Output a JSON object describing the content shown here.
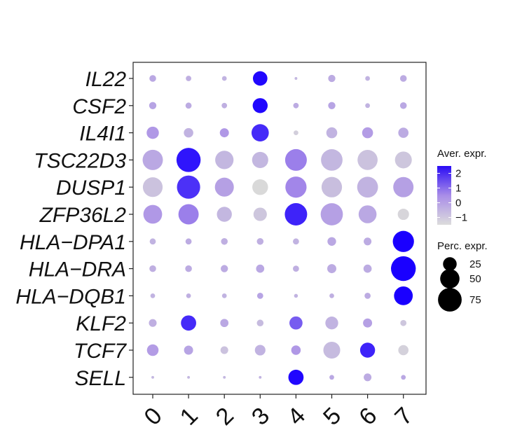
{
  "chart_data": {
    "type": "dotplot",
    "title": "",
    "xlabel": "",
    "ylabel": "",
    "clusters": [
      "0",
      "1",
      "2",
      "3",
      "4",
      "5",
      "6",
      "7"
    ],
    "genes": [
      "IL22",
      "CSF2",
      "IL4I1",
      "TSC22D3",
      "DUSP1",
      "ZFP36L2",
      "HLA−DPA1",
      "HLA−DRA",
      "HLA−DQB1",
      "KLF2",
      "TCF7",
      "SELL"
    ],
    "expr": [
      [
        -0.2,
        -0.4,
        -0.5,
        2.4,
        -0.6,
        -0.3,
        -0.5,
        -0.3
      ],
      [
        -0.1,
        -0.3,
        -0.4,
        2.4,
        -0.3,
        -0.1,
        -0.5,
        -0.2
      ],
      [
        0.2,
        -0.5,
        0.2,
        1.9,
        -1.2,
        -0.5,
        0.1,
        -0.3
      ],
      [
        -0.2,
        2.2,
        -0.6,
        -0.6,
        0.7,
        -0.6,
        -0.9,
        -1.0
      ],
      [
        -0.9,
        1.8,
        0.0,
        -1.5,
        0.6,
        -0.8,
        -0.5,
        0.0
      ],
      [
        0.2,
        0.7,
        -0.6,
        -1.0,
        2.0,
        0.0,
        -0.2,
        -1.4
      ],
      [
        -0.5,
        -0.3,
        -0.4,
        -0.4,
        -0.5,
        -0.2,
        -0.3,
        3.0
      ],
      [
        -0.4,
        -0.3,
        -0.3,
        -0.2,
        -0.4,
        -0.3,
        -0.3,
        3.0
      ],
      [
        -0.5,
        -0.4,
        -0.5,
        -0.1,
        -0.5,
        -0.4,
        -0.3,
        3.0
      ],
      [
        -0.4,
        1.9,
        -0.2,
        -0.7,
        1.2,
        -0.5,
        0.0,
        -1.0
      ],
      [
        0.1,
        -0.1,
        -0.9,
        -0.5,
        0.2,
        -0.7,
        2.0,
        -1.3
      ],
      [
        -0.6,
        -0.6,
        -0.6,
        -0.5,
        2.4,
        -0.2,
        -0.3,
        -0.2
      ]
    ],
    "pct": [
      [
        6,
        4,
        3,
        28,
        1,
        7,
        3,
        6
      ],
      [
        7,
        5,
        4,
        30,
        4,
        7,
        3,
        6
      ],
      [
        20,
        12,
        11,
        40,
        3,
        16,
        16,
        14
      ],
      [
        55,
        78,
        45,
        35,
        63,
        62,
        54,
        38
      ],
      [
        52,
        72,
        48,
        33,
        60,
        56,
        58,
        55
      ],
      [
        47,
        55,
        30,
        24,
        67,
        66,
        43,
        17
      ],
      [
        5,
        5,
        6,
        6,
        5,
        10,
        8,
        60
      ],
      [
        6,
        6,
        7,
        9,
        5,
        11,
        9,
        82
      ],
      [
        3,
        3,
        3,
        5,
        2,
        3,
        5,
        47
      ],
      [
        8,
        31,
        9,
        6,
        23,
        22,
        11,
        5
      ],
      [
        18,
        11,
        8,
        15,
        12,
        38,
        30,
        14
      ],
      [
        1,
        1,
        1,
        1,
        31,
        3,
        8,
        3
      ]
    ],
    "color_scale": {
      "title": "Aver. expr.",
      "low": "#d9d9d9",
      "high": "#1a00ff",
      "domain": [
        -1.5,
        2.5
      ],
      "ticks": [
        "2",
        "1",
        "0",
        "−1"
      ],
      "tick_values": [
        2,
        1,
        0,
        -1
      ]
    },
    "size_scale": {
      "title": "Perc. expr.",
      "ticks": [
        "25",
        "50",
        "75"
      ],
      "tick_values": [
        25,
        50,
        75
      ],
      "max_value": 85
    }
  }
}
